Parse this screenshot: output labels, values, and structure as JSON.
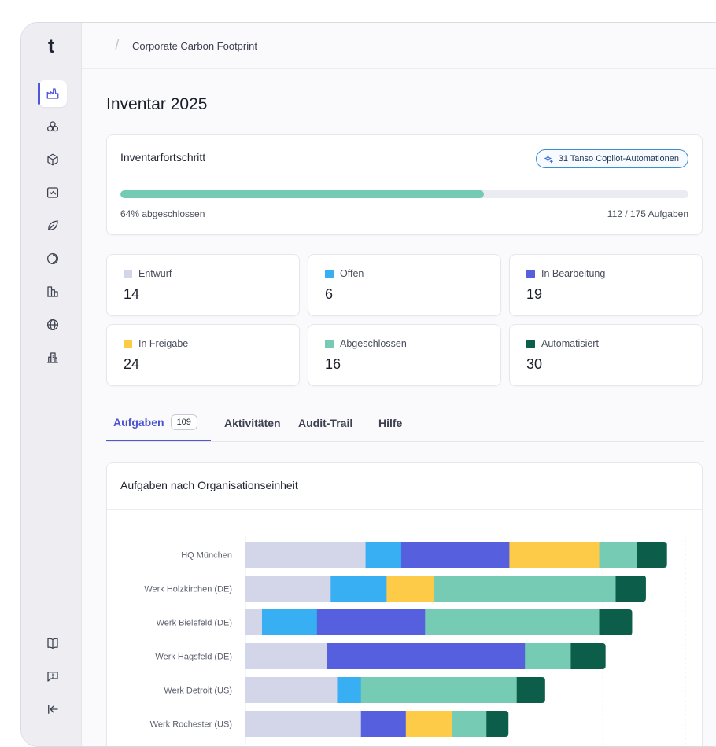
{
  "app": {
    "logo": "t"
  },
  "sidebar": {
    "top_icons": [
      "factory-icon",
      "modules-icon",
      "cube-icon",
      "trend-chart-icon",
      "leaf-icon",
      "scope-icon",
      "buildings-icon",
      "globe-icon",
      "office-icon"
    ],
    "bottom_icons": [
      "book-icon",
      "feedback-icon",
      "collapse-icon"
    ]
  },
  "breadcrumb": {
    "item": "Corporate Carbon Footprint"
  },
  "page": {
    "title": "Inventar 2025"
  },
  "progress": {
    "title": "Inventarfortschritt",
    "badge": "31 Tanso Copilot-Automationen",
    "percent": 64,
    "percent_label": "64% abgeschlossen",
    "count_label": "112 / 175 Aufgaben"
  },
  "stats": [
    {
      "label": "Entwurf",
      "value": "14",
      "color": "#d2d6e8"
    },
    {
      "label": "Offen",
      "value": "6",
      "color": "#38aef3"
    },
    {
      "label": "In Bearbeitung",
      "value": "19",
      "color": "#5660de"
    },
    {
      "label": "In Freigabe",
      "value": "24",
      "color": "#fecb49"
    },
    {
      "label": "Abgeschlossen",
      "value": "16",
      "color": "#76cbb4"
    },
    {
      "label": "Automatisiert",
      "value": "30",
      "color": "#0c5e4b"
    }
  ],
  "tabs": [
    {
      "label": "Aufgaben",
      "count": "109"
    },
    {
      "label": "Aktivitäten"
    },
    {
      "label": "Audit-Trail"
    },
    {
      "label": "Hilfe"
    }
  ],
  "chart_title": "Aufgaben nach Organisationseinheit",
  "chart_data": {
    "type": "bar",
    "orientation": "horizontal",
    "stacked": true,
    "categories": [
      "HQ München",
      "Werk Holzkirchen (DE)",
      "Werk Bielefeld (DE)",
      "Werk Hagsfeld (DE)",
      "Werk Detroit (US)",
      "Werk Rochester (US)"
    ],
    "series": [
      {
        "name": "Entwurf",
        "color": "#d2d6e8",
        "values": [
          13.1,
          9.3,
          1.8,
          8.9,
          10,
          12.6
        ]
      },
      {
        "name": "Offen",
        "color": "#38aef3",
        "values": [
          3.9,
          6.1,
          6,
          0,
          2.6,
          0
        ]
      },
      {
        "name": "In Bearbeitung",
        "color": "#5660de",
        "values": [
          11.8,
          0,
          11.8,
          21.6,
          0,
          4.9
        ]
      },
      {
        "name": "In Freigabe",
        "color": "#fecb49",
        "values": [
          9.8,
          5.2,
          0,
          0,
          0,
          5
        ]
      },
      {
        "name": "Abgeschlossen",
        "color": "#76cbb4",
        "values": [
          4.1,
          19.8,
          19,
          5,
          17,
          3.8
        ]
      },
      {
        "name": "Automatisiert",
        "color": "#0c5e4b",
        "values": [
          3.3,
          3.3,
          3.6,
          3.8,
          3.1,
          2.4
        ]
      }
    ],
    "xlim": [
      0,
      48
    ],
    "grid": true
  }
}
